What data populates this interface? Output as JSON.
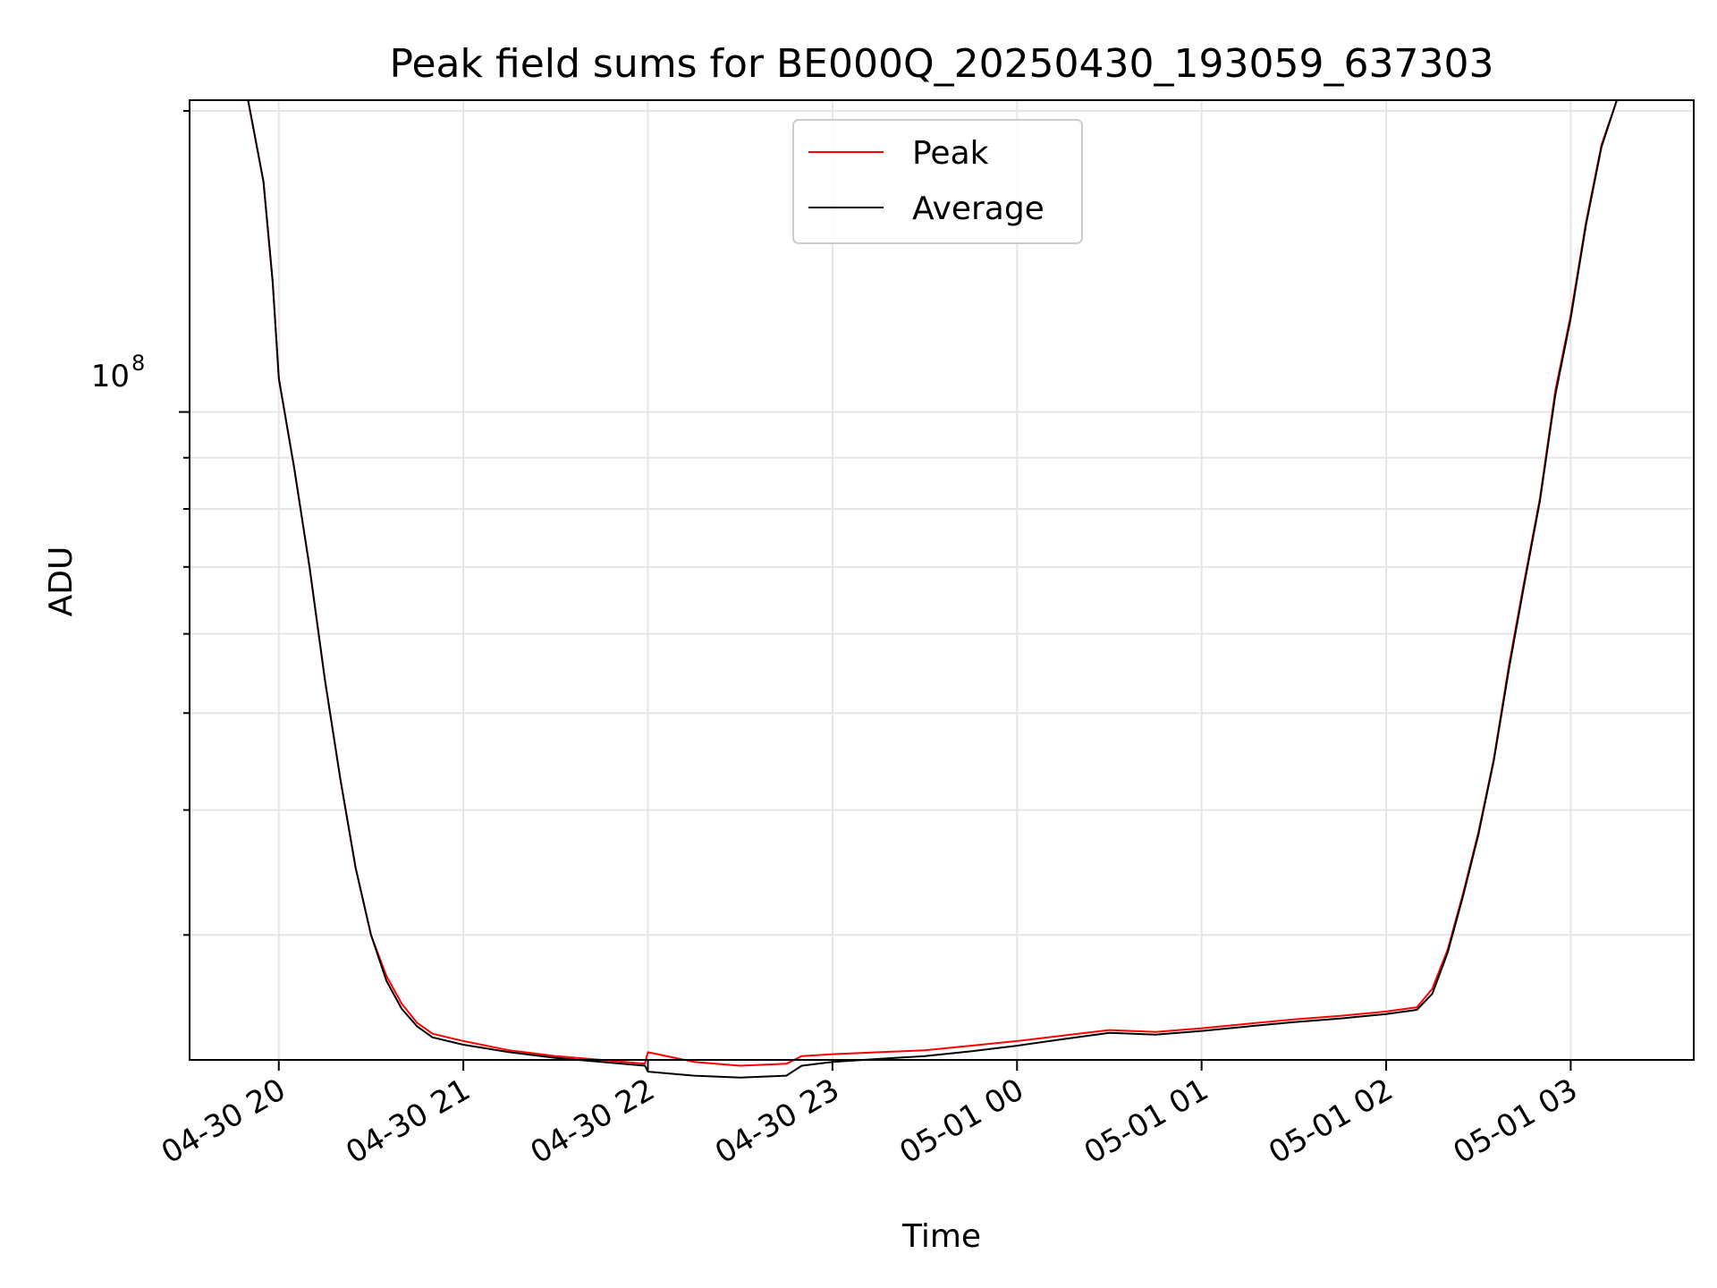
{
  "chart_data": {
    "type": "line",
    "title": "Peak field sums for BE000Q_20250430_193059_637303",
    "xlabel": "Time",
    "ylabel": "ADU",
    "y_scale": "log",
    "y_tick_label": {
      "base": "10",
      "exponent": "8",
      "value": 100000000
    },
    "ylim": [
      22500000,
      205000000
    ],
    "xlim": [
      "2025-04-30 19:31",
      "2025-05-01 03:40"
    ],
    "x_ticks": [
      {
        "time": "2025-04-30 20:00",
        "label": "04-30 20"
      },
      {
        "time": "2025-04-30 21:00",
        "label": "04-30 21"
      },
      {
        "time": "2025-04-30 22:00",
        "label": "04-30 22"
      },
      {
        "time": "2025-04-30 23:00",
        "label": "04-30 23"
      },
      {
        "time": "2025-05-01 00:00",
        "label": "05-01 00"
      },
      {
        "time": "2025-05-01 01:00",
        "label": "05-01 01"
      },
      {
        "time": "2025-05-01 02:00",
        "label": "05-01 02"
      },
      {
        "time": "2025-05-01 03:00",
        "label": "05-01 03"
      }
    ],
    "grid": true,
    "legend_position": "upper center",
    "series": [
      {
        "name": "Peak",
        "color": "#ff0000",
        "x": [
          "2025-04-30 19:43",
          "2025-04-30 19:50",
          "2025-04-30 19:55",
          "2025-04-30 19:58",
          "2025-04-30 20:00",
          "2025-04-30 20:05",
          "2025-04-30 20:10",
          "2025-04-30 20:15",
          "2025-04-30 20:20",
          "2025-04-30 20:25",
          "2025-04-30 20:30",
          "2025-04-30 20:35",
          "2025-04-30 20:40",
          "2025-04-30 20:45",
          "2025-04-30 20:50",
          "2025-04-30 21:00",
          "2025-04-30 21:15",
          "2025-04-30 21:30",
          "2025-04-30 21:45",
          "2025-04-30 21:59",
          "2025-04-30 22:00",
          "2025-04-30 22:15",
          "2025-04-30 22:30",
          "2025-04-30 22:45",
          "2025-04-30 22:50",
          "2025-04-30 23:00",
          "2025-04-30 23:15",
          "2025-04-30 23:30",
          "2025-04-30 23:45",
          "2025-05-01 00:00",
          "2025-05-01 00:15",
          "2025-05-01 00:30",
          "2025-05-01 00:45",
          "2025-05-01 01:00",
          "2025-05-01 01:15",
          "2025-05-01 01:30",
          "2025-05-01 01:45",
          "2025-05-01 02:00",
          "2025-05-01 02:10",
          "2025-05-01 02:15",
          "2025-05-01 02:20",
          "2025-05-01 02:25",
          "2025-05-01 02:30",
          "2025-05-01 02:35",
          "2025-05-01 02:40",
          "2025-05-01 02:45",
          "2025-05-01 02:50",
          "2025-05-01 02:55",
          "2025-05-01 03:00",
          "2025-05-01 03:05",
          "2025-05-01 03:10",
          "2025-05-01 03:15",
          "2025-05-01 03:20",
          "2025-05-01 03:25"
        ],
        "y": [
          205000000,
          205000000,
          170000000,
          135000000,
          108000000,
          88000000,
          70000000,
          54000000,
          43000000,
          35000000,
          30000000,
          27300000,
          25600000,
          24500000,
          23900000,
          23500000,
          23000000,
          22700000,
          22500000,
          22300000,
          22900000,
          22400000,
          22200000,
          22300000,
          22700000,
          22800000,
          22900000,
          23000000,
          23250000,
          23500000,
          23800000,
          24100000,
          24000000,
          24200000,
          24450000,
          24700000,
          24900000,
          25150000,
          25400000,
          26500000,
          29000000,
          33000000,
          38000000,
          45000000,
          56000000,
          68000000,
          82000000,
          105000000,
          125000000,
          155000000,
          185000000,
          205000000,
          205000000,
          205000000
        ]
      },
      {
        "name": "Average",
        "color": "#000000",
        "x": [
          "2025-04-30 19:43",
          "2025-04-30 19:50",
          "2025-04-30 19:55",
          "2025-04-30 19:58",
          "2025-04-30 20:00",
          "2025-04-30 20:05",
          "2025-04-30 20:10",
          "2025-04-30 20:15",
          "2025-04-30 20:20",
          "2025-04-30 20:25",
          "2025-04-30 20:30",
          "2025-04-30 20:35",
          "2025-04-30 20:40",
          "2025-04-30 20:45",
          "2025-04-30 20:50",
          "2025-04-30 21:00",
          "2025-04-30 21:15",
          "2025-04-30 21:30",
          "2025-04-30 21:45",
          "2025-04-30 21:59",
          "2025-04-30 22:00",
          "2025-04-30 22:15",
          "2025-04-30 22:30",
          "2025-04-30 22:45",
          "2025-04-30 22:50",
          "2025-04-30 23:00",
          "2025-04-30 23:15",
          "2025-04-30 23:30",
          "2025-04-30 23:45",
          "2025-05-01 00:00",
          "2025-05-01 00:15",
          "2025-05-01 00:30",
          "2025-05-01 00:45",
          "2025-05-01 01:00",
          "2025-05-01 01:15",
          "2025-05-01 01:30",
          "2025-05-01 01:45",
          "2025-05-01 02:00",
          "2025-05-01 02:10",
          "2025-05-01 02:15",
          "2025-05-01 02:20",
          "2025-05-01 02:25",
          "2025-05-01 02:30",
          "2025-05-01 02:35",
          "2025-05-01 02:40",
          "2025-05-01 02:45",
          "2025-05-01 02:50",
          "2025-05-01 02:55",
          "2025-05-01 03:00",
          "2025-05-01 03:05",
          "2025-05-01 03:10",
          "2025-05-01 03:15",
          "2025-05-01 03:20",
          "2025-05-01 03:25"
        ],
        "y": [
          205000000,
          205000000,
          170000000,
          135000000,
          108000000,
          88000000,
          70000000,
          54000000,
          43000000,
          35000000,
          30000000,
          27000000,
          25300000,
          24300000,
          23700000,
          23300000,
          22900000,
          22600000,
          22400000,
          22200000,
          21900000,
          21700000,
          21600000,
          21700000,
          22200000,
          22400000,
          22550000,
          22700000,
          22950000,
          23250000,
          23600000,
          23950000,
          23850000,
          24050000,
          24300000,
          24550000,
          24750000,
          25000000,
          25250000,
          26200000,
          28800000,
          32800000,
          37800000,
          44800000,
          55500000,
          67500000,
          81500000,
          104000000,
          124000000,
          154000000,
          184000000,
          205000000,
          205000000,
          205000000
        ]
      }
    ]
  }
}
